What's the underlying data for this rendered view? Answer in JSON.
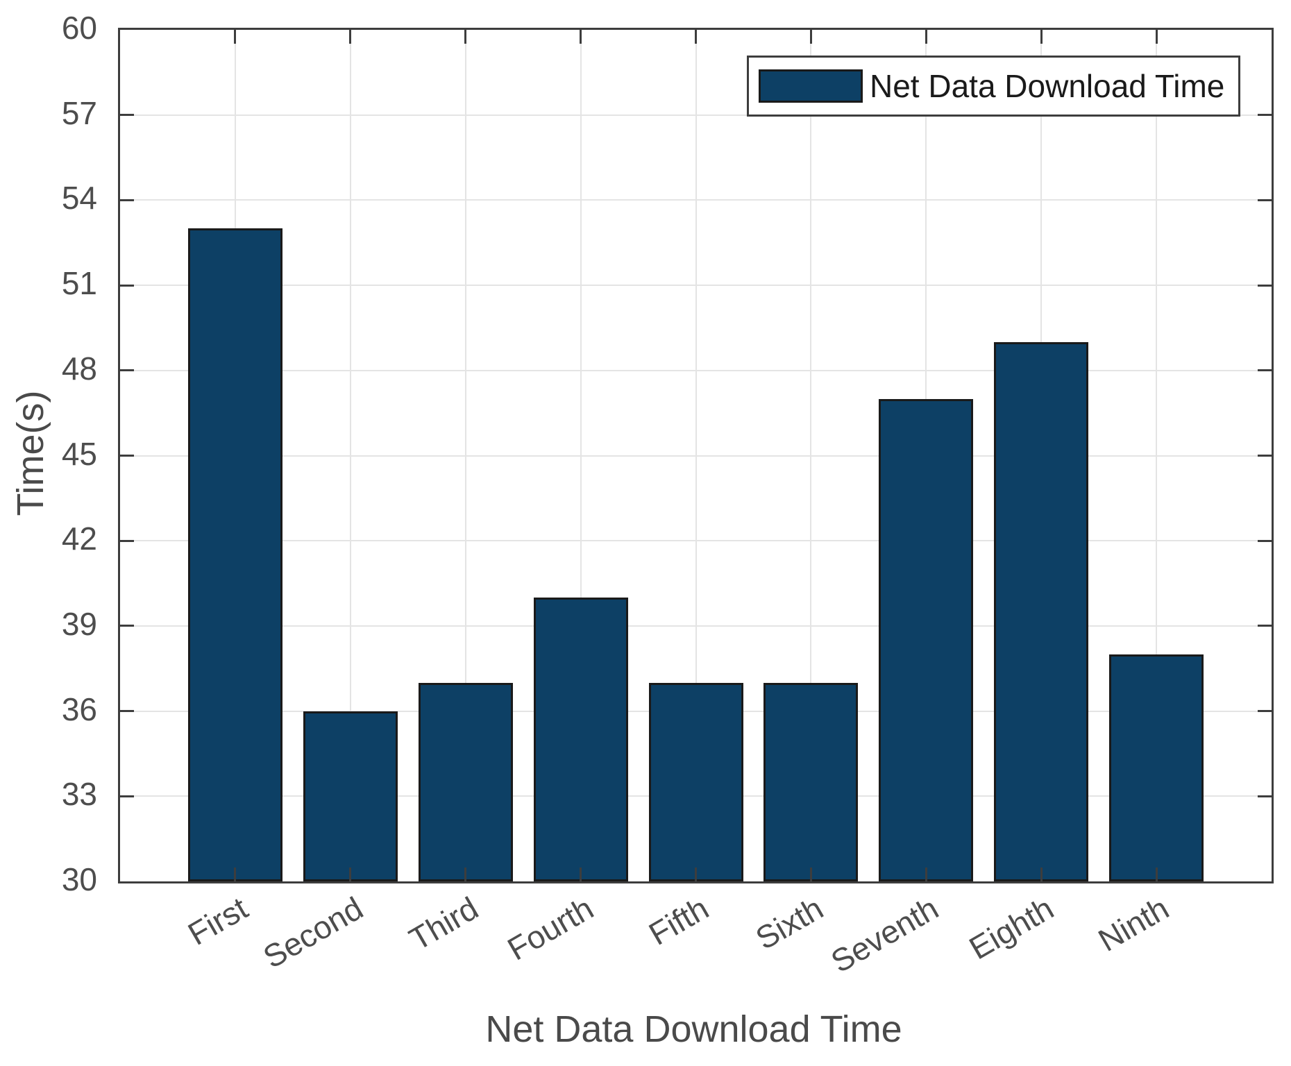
{
  "chart_data": {
    "type": "bar",
    "title": "",
    "xlabel": "Net Data Download Time",
    "ylabel": "Time(s)",
    "categories": [
      "First",
      "Second",
      "Third",
      "Fourth",
      "Fifth",
      "Sixth",
      "Seventh",
      "Eighth",
      "Ninth"
    ],
    "values": [
      53,
      36,
      37,
      40,
      37,
      37,
      47,
      49,
      38
    ],
    "ylim": [
      30,
      60
    ],
    "yticks": [
      30,
      33,
      36,
      39,
      42,
      45,
      48,
      51,
      54,
      57,
      60
    ],
    "xlim": [
      0,
      10
    ],
    "x_positions": [
      1,
      2,
      3,
      4,
      5,
      6,
      7,
      8,
      9
    ],
    "x_tick_rotation_deg": 30,
    "grid": true,
    "legend": {
      "label": "Net Data Download Time",
      "position": "top-right"
    },
    "colors": {
      "bar_fill": "#0d4065",
      "bar_edge": "#1a1a1a",
      "axis": "#3d3d3d",
      "grid": "#e4e4e4",
      "tick_labels": "#4d4d4d",
      "axis_labels": "#4a4a4a",
      "legend_text": "#1a1a1a",
      "background": "#ffffff"
    }
  }
}
